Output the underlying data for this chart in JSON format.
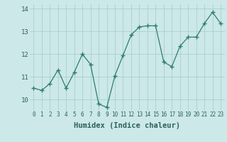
{
  "x": [
    0,
    1,
    2,
    3,
    4,
    5,
    6,
    7,
    8,
    9,
    10,
    11,
    12,
    13,
    14,
    15,
    16,
    17,
    18,
    19,
    20,
    21,
    22,
    23
  ],
  "y": [
    10.5,
    10.4,
    10.7,
    11.3,
    10.5,
    11.2,
    12.0,
    11.55,
    9.8,
    9.65,
    11.05,
    11.95,
    12.85,
    13.2,
    13.25,
    13.25,
    11.65,
    11.45,
    12.35,
    12.75,
    12.75,
    13.35,
    13.85,
    13.35
  ],
  "line_color": "#2d7d6e",
  "marker": "+",
  "marker_size": 4,
  "marker_lw": 1.0,
  "line_width": 0.9,
  "bg_color": "#cce8e8",
  "grid_color": "#aacfcf",
  "xlabel": "Humidex (Indice chaleur)",
  "xlabel_fontsize": 7.5,
  "xlim": [
    -0.5,
    23.5
  ],
  "ylim": [
    9.5,
    14.2
  ],
  "yticks": [
    10,
    11,
    12,
    13,
    14
  ],
  "ytick_fontsize": 6.5,
  "xtick_fontsize": 5.5,
  "xticks": [
    0,
    1,
    2,
    3,
    4,
    5,
    6,
    7,
    8,
    9,
    10,
    11,
    12,
    13,
    14,
    15,
    16,
    17,
    18,
    19,
    20,
    21,
    22,
    23
  ]
}
